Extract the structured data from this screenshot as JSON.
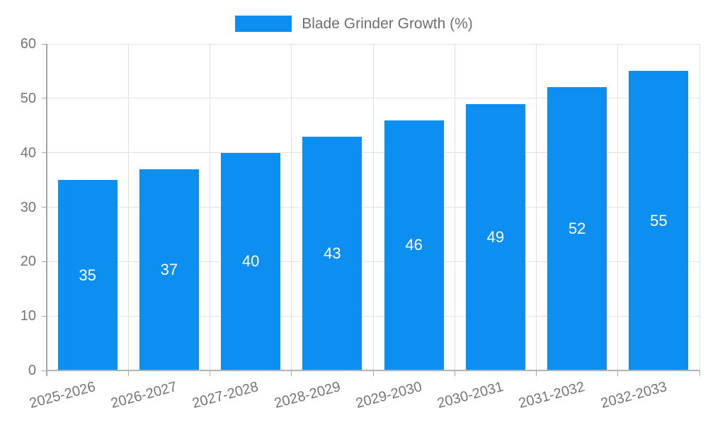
{
  "legend": {
    "label": "Blade Grinder Growth (%)"
  },
  "chart_data": {
    "type": "bar",
    "title": "Blade Grinder Growth (%)",
    "categories": [
      "2025-2026",
      "2026-2027",
      "2027-2028",
      "2028-2029",
      "2029-2030",
      "2030-2031",
      "2031-2032",
      "2032-2033"
    ],
    "values": [
      35,
      37,
      40,
      43,
      46,
      49,
      52,
      55
    ],
    "series": [
      {
        "name": "Blade Grinder Growth (%)",
        "values": [
          35,
          37,
          40,
          43,
          46,
          49,
          52,
          55
        ]
      }
    ],
    "xlabel": "",
    "ylabel": "",
    "ylim": [
      0,
      60
    ],
    "yticks": [
      0,
      10,
      20,
      30,
      40,
      50,
      60
    ],
    "grid": true,
    "legend_position": "top-center",
    "x_label_rotation_deg": -15,
    "value_labels": "inside-center",
    "colors": {
      "bar": "#0d8ff2",
      "value_label": "#ffffff",
      "axis_text": "#757575",
      "legend_text": "#6e6e6e",
      "gridline": "#e0e0e0",
      "axis_line": "#a6a6a6",
      "baseline": "#b3b3b3",
      "background": "#ffffff"
    }
  }
}
